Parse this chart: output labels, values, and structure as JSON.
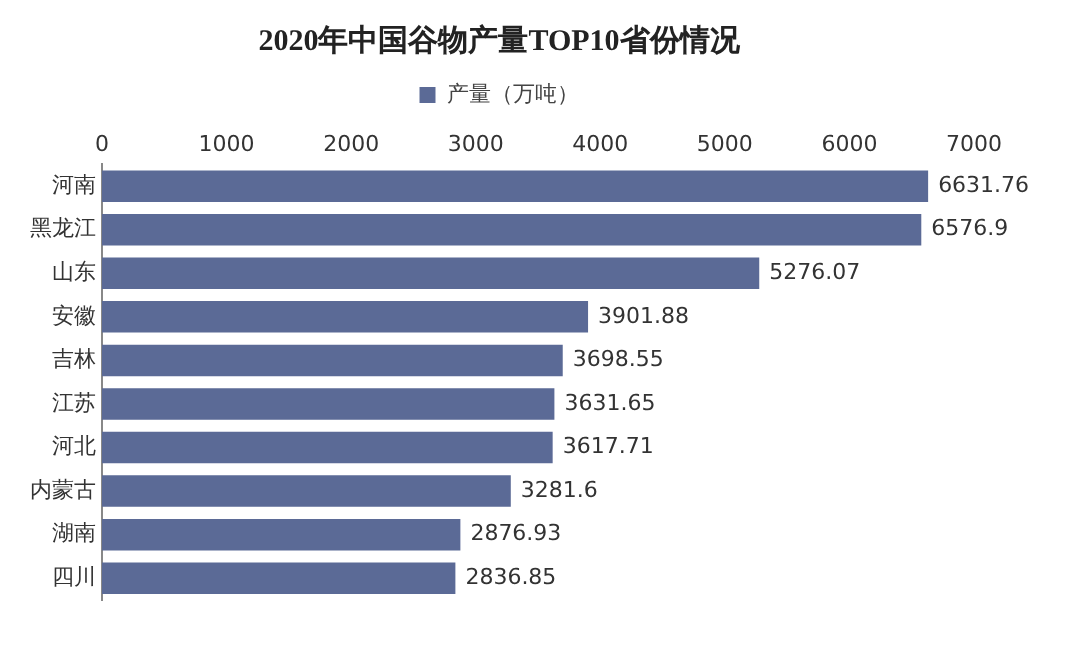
{
  "chart_data": {
    "type": "bar",
    "orientation": "horizontal",
    "title": "2020年中国谷物产量TOP10省份情况",
    "categories": [
      "河南",
      "黑龙江",
      "山东",
      "安徽",
      "吉林",
      "江苏",
      "河北",
      "内蒙古",
      "湖南",
      "四川"
    ],
    "series": [
      {
        "name": "产量（万吨）",
        "color": "#5b6a96",
        "values": [
          6631.76,
          6576.9,
          5276.07,
          3901.88,
          3698.55,
          3631.65,
          3617.71,
          3281.6,
          2876.93,
          2836.85
        ]
      }
    ],
    "xlim": [
      0,
      7000
    ],
    "xticks": [
      0,
      1000,
      2000,
      3000,
      4000,
      5000,
      6000,
      7000
    ],
    "grid": false,
    "legend": "top",
    "data_labels": true
  }
}
